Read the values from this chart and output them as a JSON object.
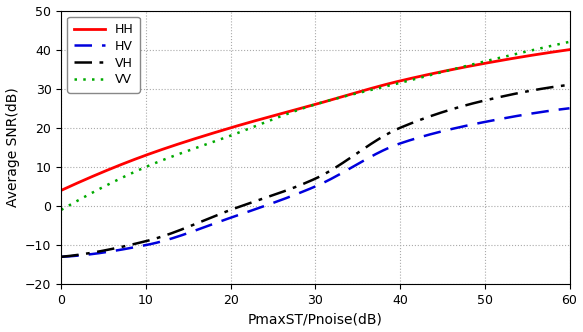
{
  "title": "",
  "xlabel": "PmaxST/Pnoise(dB)",
  "ylabel": "Average SNR(dB)",
  "xlim": [
    0,
    60
  ],
  "ylim": [
    -20,
    50
  ],
  "xticks": [
    0,
    10,
    20,
    30,
    40,
    50,
    60
  ],
  "yticks": [
    -20,
    -10,
    0,
    10,
    20,
    30,
    40,
    50
  ],
  "series": [
    {
      "label": "HH",
      "color": "#FF0000",
      "linestyle": "solid",
      "linewidth": 2.0,
      "points_x": [
        0,
        10,
        20,
        30,
        40,
        50,
        60
      ],
      "points_y": [
        4.0,
        13.0,
        20.0,
        26.0,
        32.0,
        36.5,
        40.0
      ]
    },
    {
      "label": "HV",
      "color": "#0000DD",
      "linestyle": "dashed",
      "linewidth": 1.8,
      "points_x": [
        0,
        10,
        20,
        30,
        40,
        50,
        60
      ],
      "points_y": [
        -13.0,
        -10.0,
        -3.0,
        5.0,
        16.0,
        21.5,
        25.0
      ]
    },
    {
      "label": "VH",
      "color": "#000000",
      "linestyle": "dashdot",
      "linewidth": 1.8,
      "points_x": [
        0,
        10,
        20,
        30,
        40,
        50,
        60
      ],
      "points_y": [
        -13.0,
        -9.0,
        -1.0,
        7.0,
        20.0,
        27.0,
        31.0
      ]
    },
    {
      "label": "VV",
      "color": "#00AA00",
      "linestyle": "dotted",
      "linewidth": 1.8,
      "points_x": [
        0,
        10,
        20,
        30,
        40,
        50,
        60
      ],
      "points_y": [
        -1.0,
        10.0,
        18.0,
        26.0,
        31.5,
        37.0,
        42.0
      ]
    }
  ],
  "grid_color": "#AAAAAA",
  "grid_linestyle": "dotted",
  "grid_linewidth": 0.8,
  "legend_loc": "upper left",
  "legend_fontsize": 9,
  "background_color": "#FFFFFF",
  "tick_fontsize": 9,
  "label_fontsize": 10
}
